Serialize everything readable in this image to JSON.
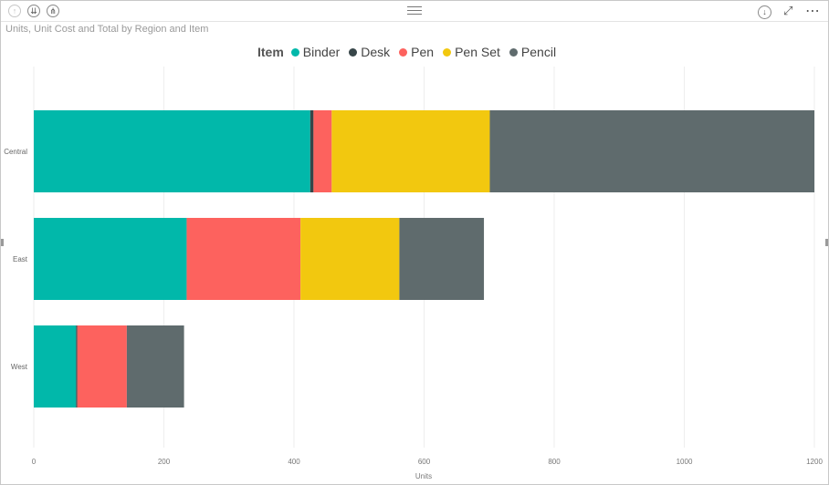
{
  "toolbar": {
    "left_icons": [
      "drill-up-icon",
      "expand-all-icon",
      "drill-down-icon"
    ],
    "right_icons": [
      "drill-mode-icon",
      "focus-mode-icon",
      "more-options-icon"
    ]
  },
  "colors": {
    "Binder": "#01b8aa",
    "Desk": "#374649",
    "Pen": "#fd625e",
    "Pen Set": "#f2c80f",
    "Pencil": "#5f6b6d"
  },
  "chart_data": {
    "type": "bar",
    "orientation": "horizontal",
    "stacked": true,
    "title": "Units, Unit Cost and Total by Region and Item",
    "legend_title": "Item",
    "legend_position": "top",
    "xlabel": "Units",
    "ylabel": "",
    "xlim": [
      0,
      1200
    ],
    "xticks": [
      0,
      200,
      400,
      600,
      800,
      1000,
      1200
    ],
    "grid": true,
    "categories": [
      "Central",
      "East",
      "West"
    ],
    "series": [
      {
        "name": "Binder",
        "values": [
          425,
          235,
          65
        ]
      },
      {
        "name": "Desk",
        "values": [
          5,
          0,
          2
        ]
      },
      {
        "name": "Pen",
        "values": [
          28,
          175,
          76
        ]
      },
      {
        "name": "Pen Set",
        "values": [
          243,
          152,
          0
        ]
      },
      {
        "name": "Pencil",
        "values": [
          499,
          130,
          88
        ]
      }
    ]
  }
}
